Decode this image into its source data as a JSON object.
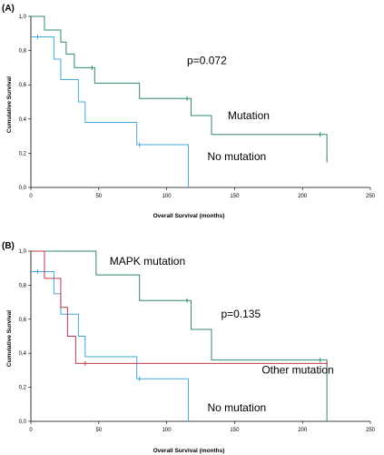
{
  "chart_data": [
    {
      "type": "line",
      "panel_label": "(A)",
      "xlabel": "Overall Survival (months)",
      "ylabel": "Cumulative Survival",
      "xlim": [
        0,
        250
      ],
      "ylim": [
        0,
        1
      ],
      "x_ticks": [
        0,
        50,
        100,
        150,
        200,
        250
      ],
      "y_ticks": [
        0.0,
        0.2,
        0.4,
        0.6,
        0.8,
        1.0
      ],
      "x_tick_labels": [
        "0",
        "50",
        "100",
        "150",
        "200",
        "250"
      ],
      "y_tick_labels": [
        "0,0",
        "0,2",
        "0,4",
        "0,6",
        "0,8",
        "1,0"
      ],
      "grid": false,
      "series": [
        {
          "color": "#2e8b6e",
          "steps": [
            [
              0,
              1.0
            ],
            [
              10,
              0.92
            ],
            [
              22,
              0.85
            ],
            [
              26,
              0.78
            ],
            [
              32,
              0.7
            ],
            [
              47,
              0.61
            ],
            [
              80,
              0.52
            ],
            [
              118,
              0.42
            ],
            [
              133,
              0.31
            ],
            [
              218,
              0.16
            ]
          ],
          "end_x": 218,
          "censor_x": [
            45,
            115,
            213,
            218
          ]
        },
        {
          "color": "#45a8d8",
          "steps": [
            [
              0,
              0.88
            ],
            [
              17,
              0.75
            ],
            [
              22,
              0.63
            ],
            [
              35,
              0.5
            ],
            [
              40,
              0.38
            ],
            [
              50,
              0.38
            ],
            [
              78,
              0.25
            ],
            [
              116,
              0.0
            ]
          ],
          "end_x": 116,
          "censor_x": [
            5,
            80
          ]
        }
      ],
      "annotations": [
        {
          "text": "p=0.072",
          "x": 115,
          "y": 0.72
        },
        {
          "text": "Mutation",
          "x": 145,
          "y": 0.4
        },
        {
          "text": "No mutation",
          "x": 130,
          "y": 0.16
        }
      ]
    },
    {
      "type": "line",
      "panel_label": "(B)",
      "xlabel": "Overall Survival (months)",
      "ylabel": "Cumulative Survival",
      "xlim": [
        0,
        250
      ],
      "ylim": [
        0,
        1
      ],
      "x_ticks": [
        0,
        50,
        100,
        150,
        200,
        250
      ],
      "y_ticks": [
        0.0,
        0.2,
        0.4,
        0.6,
        0.8,
        1.0
      ],
      "x_tick_labels": [
        "0",
        "50",
        "100",
        "150",
        "200",
        "250"
      ],
      "y_tick_labels": [
        "0,0",
        "0,2",
        "0,4",
        "0,6",
        "0,8",
        "1,0"
      ],
      "grid": false,
      "series": [
        {
          "color": "#2e8b6e",
          "steps": [
            [
              0,
              1.0
            ],
            [
              48,
              0.86
            ],
            [
              80,
              0.71
            ],
            [
              118,
              0.54
            ],
            [
              133,
              0.36
            ],
            [
              218,
              0.0
            ]
          ],
          "end_x": 218,
          "censor_x": [
            115,
            213
          ]
        },
        {
          "color": "#45a8d8",
          "steps": [
            [
              0,
              0.88
            ],
            [
              17,
              0.75
            ],
            [
              22,
              0.63
            ],
            [
              35,
              0.5
            ],
            [
              40,
              0.38
            ],
            [
              50,
              0.38
            ],
            [
              78,
              0.25
            ],
            [
              116,
              0.0
            ]
          ],
          "end_x": 116,
          "censor_x": [
            5,
            80
          ]
        },
        {
          "color": "#c0394f",
          "steps": [
            [
              0,
              1.0
            ],
            [
              10,
              0.84
            ],
            [
              22,
              0.67
            ],
            [
              27,
              0.5
            ],
            [
              33,
              0.34
            ],
            [
              218,
              0.34
            ]
          ],
          "end_x": 218,
          "censor_x": [
            40,
            218
          ]
        }
      ],
      "annotations": [
        {
          "text": "MAPK mutation",
          "x": 58,
          "y": 0.92
        },
        {
          "text": "p=0.135",
          "x": 140,
          "y": 0.61
        },
        {
          "text": "Other mutation",
          "x": 170,
          "y": 0.28
        },
        {
          "text": "No mutation",
          "x": 130,
          "y": 0.06
        }
      ]
    }
  ]
}
